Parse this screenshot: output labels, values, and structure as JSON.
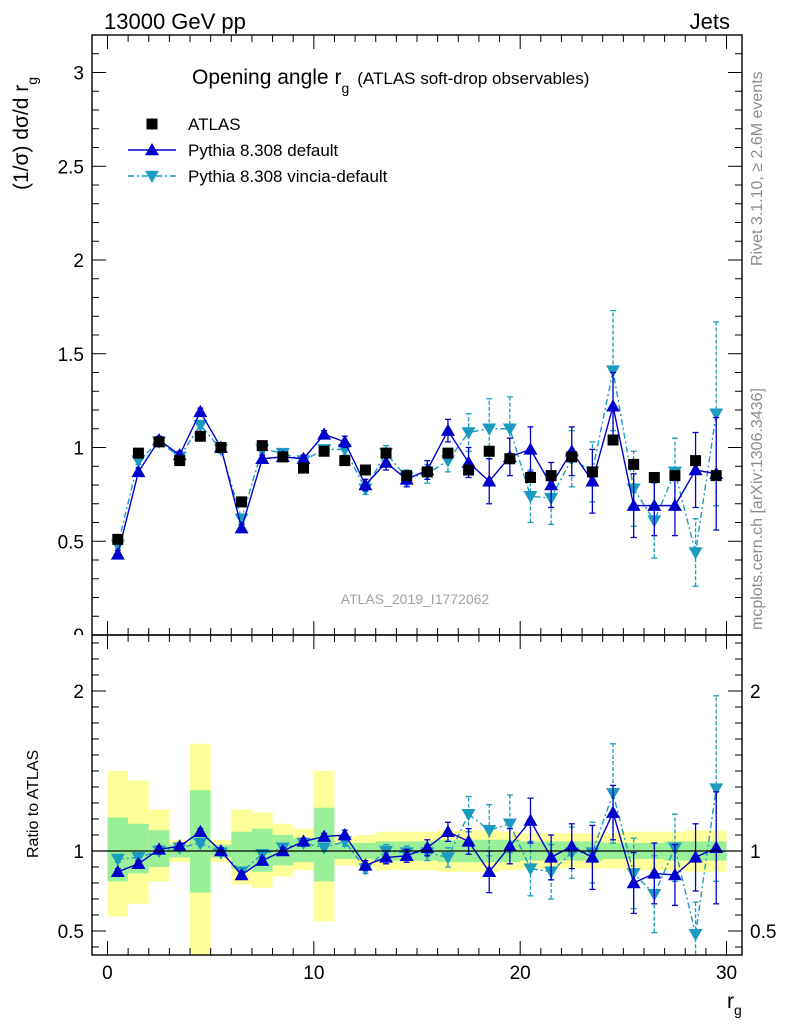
{
  "header": {
    "left": "13000 GeV pp",
    "right": "Jets"
  },
  "title": {
    "main": "Opening angle r",
    "main_sub": "g",
    "detail": "(ATLAS soft-drop observables)"
  },
  "side_text": {
    "top": "Rivet 3.1.10, ≥ 2.6M events",
    "bottom": "mcplots.cern.ch [arXiv:1306.3436]"
  },
  "watermark": "ATLAS_2019_I1772062",
  "chart_data": [
    {
      "type": "scatter",
      "ylabel": "(1/σ) dσ/d r",
      "ylabel_sub": "g",
      "ylim": [
        0,
        3.2
      ],
      "yticks": [
        {
          "v": 0.5,
          "label": "0.5"
        },
        {
          "v": 1,
          "label": "1"
        },
        {
          "v": 1.5,
          "label": "1.5"
        },
        {
          "v": 2,
          "label": "2"
        },
        {
          "v": 2.5,
          "label": "2.5"
        },
        {
          "v": 3,
          "label": "3"
        }
      ],
      "partial_tick_label": "0",
      "x": [
        0.5,
        1.5,
        2.5,
        3.5,
        4.5,
        5.5,
        6.5,
        7.5,
        8.5,
        9.5,
        10.5,
        11.5,
        12.5,
        13.5,
        14.5,
        15.5,
        16.5,
        17.5,
        18.5,
        19.5,
        20.5,
        21.5,
        22.5,
        23.5,
        24.5,
        25.5,
        26.5,
        27.5,
        28.5,
        29.5
      ],
      "series": [
        {
          "name": "ATLAS",
          "color": "#000000",
          "marker": "square",
          "values": [
            0.51,
            0.97,
            1.03,
            0.93,
            1.06,
            1.0,
            0.71,
            1.01,
            0.95,
            0.89,
            0.98,
            0.93,
            0.88,
            0.97,
            0.85,
            0.87,
            0.97,
            0.88,
            0.98,
            0.94,
            0.84,
            0.85,
            0.95,
            0.87,
            1.04,
            0.91,
            0.84,
            0.85,
            0.93,
            0.85
          ]
        },
        {
          "name": "Pythia 8.308 default",
          "color": "#0000cc",
          "marker": "triangle-up",
          "line": "solid",
          "values": [
            0.43,
            0.87,
            1.04,
            0.96,
            1.19,
            1.0,
            0.57,
            0.94,
            0.95,
            0.94,
            1.07,
            1.03,
            0.8,
            0.92,
            0.83,
            0.88,
            1.09,
            0.92,
            0.82,
            0.95,
            0.99,
            0.8,
            0.98,
            0.82,
            1.22,
            0.69,
            0.69,
            0.69,
            0.88,
            0.86
          ],
          "errors": [
            0.02,
            0.02,
            0.02,
            0.02,
            0.02,
            0.02,
            0.02,
            0.02,
            0.02,
            0.02,
            0.02,
            0.03,
            0.03,
            0.04,
            0.04,
            0.05,
            0.06,
            0.08,
            0.12,
            0.1,
            0.12,
            0.12,
            0.13,
            0.17,
            0.18,
            0.17,
            0.16,
            0.16,
            0.2,
            0.3
          ]
        },
        {
          "name": "Pythia 8.308 vincia-default",
          "color": "#1a9bbf",
          "marker": "triangle-down",
          "line": "dash-dot",
          "values": [
            0.48,
            0.93,
            1.03,
            0.95,
            1.12,
            0.99,
            0.62,
            0.99,
            0.97,
            0.93,
            0.99,
            0.99,
            0.78,
            0.97,
            0.84,
            0.86,
            0.93,
            1.08,
            1.1,
            1.1,
            0.74,
            0.73,
            0.94,
            0.87,
            1.41,
            0.78,
            0.61,
            0.87,
            0.44,
            1.18
          ],
          "errors": [
            0.02,
            0.02,
            0.02,
            0.02,
            0.02,
            0.02,
            0.02,
            0.02,
            0.02,
            0.02,
            0.02,
            0.03,
            0.03,
            0.04,
            0.04,
            0.05,
            0.06,
            0.1,
            0.16,
            0.17,
            0.14,
            0.14,
            0.15,
            0.16,
            0.32,
            0.2,
            0.2,
            0.18,
            0.18,
            0.49
          ]
        }
      ]
    },
    {
      "type": "scatter",
      "ylabel": "Ratio to ATLAS",
      "xlabel": "r",
      "xlabel_sub": "g",
      "xlim": [
        -0.75,
        30.75
      ],
      "xticks": [
        {
          "v": 0,
          "label": "0"
        },
        {
          "v": 10,
          "label": "10"
        },
        {
          "v": 20,
          "label": "20"
        },
        {
          "v": 30,
          "label": "30"
        }
      ],
      "ylim": [
        0.35,
        2.35
      ],
      "yticks": [
        {
          "v": 0.5,
          "label": "0.5"
        },
        {
          "v": 1,
          "label": "1"
        },
        {
          "v": 2,
          "label": "2"
        }
      ],
      "band_colors": {
        "inner": "#99f099",
        "outer": "#ffff99"
      },
      "band_inner": [
        [
          0.81,
          1.21
        ],
        [
          0.86,
          1.17
        ],
        [
          0.9,
          1.13
        ],
        [
          0.96,
          1.04
        ],
        [
          0.74,
          1.38
        ],
        [
          0.96,
          1.04
        ],
        [
          0.89,
          1.12
        ],
        [
          0.87,
          1.14
        ],
        [
          0.91,
          1.1
        ],
        [
          0.93,
          1.08
        ],
        [
          0.81,
          1.27
        ],
        [
          0.95,
          1.05
        ],
        [
          0.95,
          1.05
        ],
        [
          0.94,
          1.06
        ],
        [
          0.94,
          1.06
        ],
        [
          0.94,
          1.06
        ],
        [
          0.93,
          1.07
        ],
        [
          0.93,
          1.07
        ],
        [
          0.93,
          1.07
        ],
        [
          0.93,
          1.07
        ],
        [
          0.94,
          1.06
        ],
        [
          0.94,
          1.06
        ],
        [
          0.94,
          1.06
        ],
        [
          0.94,
          1.06
        ],
        [
          0.95,
          1.05
        ],
        [
          0.95,
          1.05
        ],
        [
          0.95,
          1.05
        ],
        [
          0.94,
          1.06
        ],
        [
          0.94,
          1.06
        ],
        [
          0.94,
          1.06
        ]
      ],
      "band_outer": [
        [
          0.59,
          1.5
        ],
        [
          0.67,
          1.44
        ],
        [
          0.81,
          1.26
        ],
        [
          0.93,
          1.07
        ],
        [
          0.32,
          1.67
        ],
        [
          0.93,
          1.07
        ],
        [
          0.79,
          1.26
        ],
        [
          0.77,
          1.24
        ],
        [
          0.84,
          1.17
        ],
        [
          0.88,
          1.14
        ],
        [
          0.56,
          1.5
        ],
        [
          0.91,
          1.09
        ],
        [
          0.9,
          1.1
        ],
        [
          0.88,
          1.12
        ],
        [
          0.88,
          1.12
        ],
        [
          0.88,
          1.12
        ],
        [
          0.87,
          1.13
        ],
        [
          0.87,
          1.13
        ],
        [
          0.87,
          1.13
        ],
        [
          0.88,
          1.12
        ],
        [
          0.89,
          1.11
        ],
        [
          0.89,
          1.11
        ],
        [
          0.89,
          1.11
        ],
        [
          0.89,
          1.11
        ],
        [
          0.89,
          1.11
        ],
        [
          0.88,
          1.12
        ],
        [
          0.88,
          1.12
        ],
        [
          0.88,
          1.12
        ],
        [
          0.87,
          1.13
        ],
        [
          0.87,
          1.13
        ]
      ],
      "series": [
        {
          "name": "Pythia 8.308 default",
          "color": "#0000cc",
          "marker": "triangle-up",
          "line": "solid",
          "values": [
            0.87,
            0.92,
            1.01,
            1.03,
            1.12,
            1.0,
            0.85,
            0.94,
            1.0,
            1.06,
            1.09,
            1.1,
            0.91,
            0.96,
            0.97,
            1.02,
            1.12,
            1.06,
            0.87,
            1.03,
            1.19,
            0.96,
            1.03,
            0.96,
            1.24,
            0.8,
            0.86,
            0.85,
            0.96,
            1.02
          ],
          "errors": [
            0.02,
            0.02,
            0.02,
            0.02,
            0.02,
            0.02,
            0.02,
            0.02,
            0.02,
            0.02,
            0.02,
            0.03,
            0.03,
            0.04,
            0.04,
            0.05,
            0.06,
            0.08,
            0.13,
            0.11,
            0.14,
            0.14,
            0.14,
            0.2,
            0.17,
            0.19,
            0.19,
            0.19,
            0.21,
            0.35
          ]
        },
        {
          "name": "Pythia 8.308 vincia-default",
          "color": "#1a9bbf",
          "marker": "triangle-down",
          "line": "dash-dot",
          "values": [
            0.95,
            0.96,
            1.0,
            1.02,
            1.05,
            0.99,
            0.87,
            0.98,
            1.02,
            1.05,
            1.02,
            1.06,
            0.89,
            1.0,
            0.99,
            0.99,
            0.96,
            1.23,
            1.13,
            1.17,
            0.89,
            0.87,
            0.99,
            0.99,
            1.36,
            0.86,
            0.73,
            1.02,
            0.48,
            1.39
          ],
          "errors": [
            0.02,
            0.02,
            0.02,
            0.02,
            0.02,
            0.02,
            0.02,
            0.02,
            0.02,
            0.02,
            0.02,
            0.03,
            0.03,
            0.04,
            0.04,
            0.05,
            0.06,
            0.11,
            0.16,
            0.18,
            0.17,
            0.17,
            0.16,
            0.19,
            0.31,
            0.22,
            0.24,
            0.21,
            0.2,
            0.58
          ]
        }
      ]
    }
  ]
}
